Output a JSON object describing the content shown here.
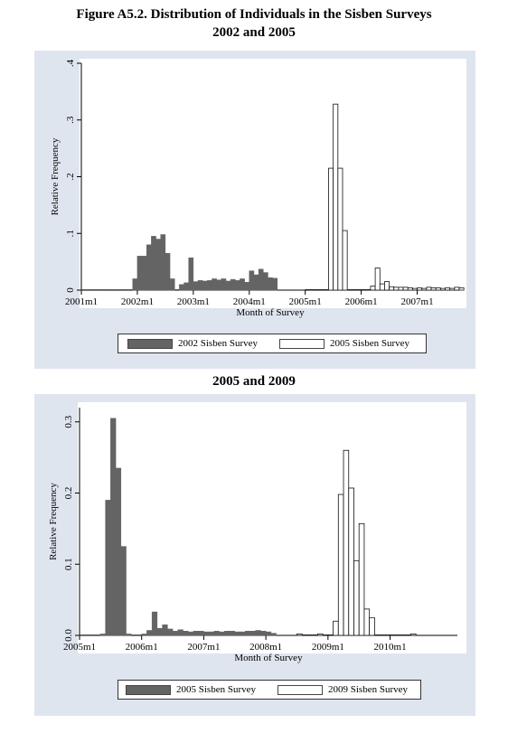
{
  "figure_title_line1": "Figure A5.2. Distribution of Individuals in the Sisben Surveys",
  "figure_title_line2": "2002 and 2005",
  "second_title": "2005 and 2009",
  "colors": {
    "filled": "#646464",
    "hollow": "#ffffff",
    "panel_bg": "#dfe5ee"
  },
  "chart_data": [
    {
      "type": "bar",
      "xlabel": "Month of Survey",
      "ylabel": "Relative Frequency",
      "x_unit": "month index counted from 2001m1",
      "xlim": [
        0,
        81
      ],
      "ylim": [
        0,
        0.4
      ],
      "yticks": [
        0,
        0.1,
        0.2,
        0.3,
        0.4
      ],
      "ytick_labels": [
        "0",
        ".1",
        ".2",
        ".3",
        ".4"
      ],
      "xticks": [
        0,
        12,
        24,
        36,
        48,
        60,
        72
      ],
      "xtick_labels": [
        "2001m1",
        "2002m1",
        "2003m1",
        "2004m1",
        "2005m1",
        "2006m1",
        "2007m1"
      ],
      "legend_position": "bottom",
      "series": [
        {
          "name": "2002 Sisben Survey",
          "style": "filled",
          "start": 0,
          "values": [
            0,
            0,
            0,
            0,
            0,
            0,
            0,
            0,
            0,
            0,
            0,
            0.02,
            0.06,
            0.06,
            0.08,
            0.095,
            0.09,
            0.098,
            0.065,
            0.02,
            0,
            0.01,
            0.013,
            0.057,
            0.015,
            0.017,
            0.016,
            0.017,
            0.02,
            0.018,
            0.02,
            0.016,
            0.019,
            0.017,
            0.02,
            0.014,
            0.034,
            0.027,
            0.037,
            0.031,
            0.022,
            0.021
          ]
        },
        {
          "name": "2005 Sisben Survey",
          "style": "hollow",
          "start": 48,
          "values": [
            0,
            0,
            0,
            0,
            0,
            0.215,
            0.328,
            0.215,
            0.105,
            0,
            0,
            0,
            0,
            0,
            0.007,
            0.039,
            0.011,
            0.015,
            0.006,
            0.005,
            0.005,
            0.005,
            0.004,
            0.003,
            0.004,
            0.003,
            0.005,
            0.004,
            0.004,
            0.003,
            0.004,
            0.003,
            0.005,
            0.004
          ]
        }
      ]
    },
    {
      "type": "bar",
      "xlabel": "Month of Survey",
      "ylabel": "Relative Frequency",
      "x_unit": "month index counted from 2005m1",
      "xlim": [
        0,
        73
      ],
      "ylim": [
        0,
        0.32
      ],
      "yticks": [
        0,
        0.1,
        0.2,
        0.3
      ],
      "ytick_labels": [
        "0.0",
        "0.1",
        "0.2",
        "0.3"
      ],
      "xticks": [
        0,
        12,
        24,
        36,
        48,
        60
      ],
      "xtick_labels": [
        "2005m1",
        "2006m1",
        "2007m1",
        "2008m1",
        "2009m1",
        "2010m1"
      ],
      "legend_position": "bottom",
      "series": [
        {
          "name": "2005 Sisben Survey",
          "style": "filled",
          "start": 0,
          "values": [
            0,
            0,
            0,
            0,
            0.002,
            0.19,
            0.305,
            0.235,
            0.125,
            0.002,
            0,
            0,
            0.002,
            0.007,
            0.033,
            0.01,
            0.015,
            0.009,
            0.006,
            0.008,
            0.006,
            0.005,
            0.006,
            0.006,
            0.005,
            0.005,
            0.006,
            0.005,
            0.006,
            0.006,
            0.005,
            0.005,
            0.006,
            0.006,
            0.007,
            0.006,
            0.005,
            0.003
          ]
        },
        {
          "name": "2009 Sisben Survey",
          "style": "hollow",
          "start": 42,
          "values": [
            0.002,
            0,
            0,
            0,
            0.002,
            0,
            0,
            0.02,
            0.198,
            0.26,
            0.207,
            0.105,
            0.157,
            0.037,
            0.025,
            0,
            0,
            0,
            0,
            0,
            0,
            0,
            0.002
          ]
        }
      ]
    }
  ]
}
